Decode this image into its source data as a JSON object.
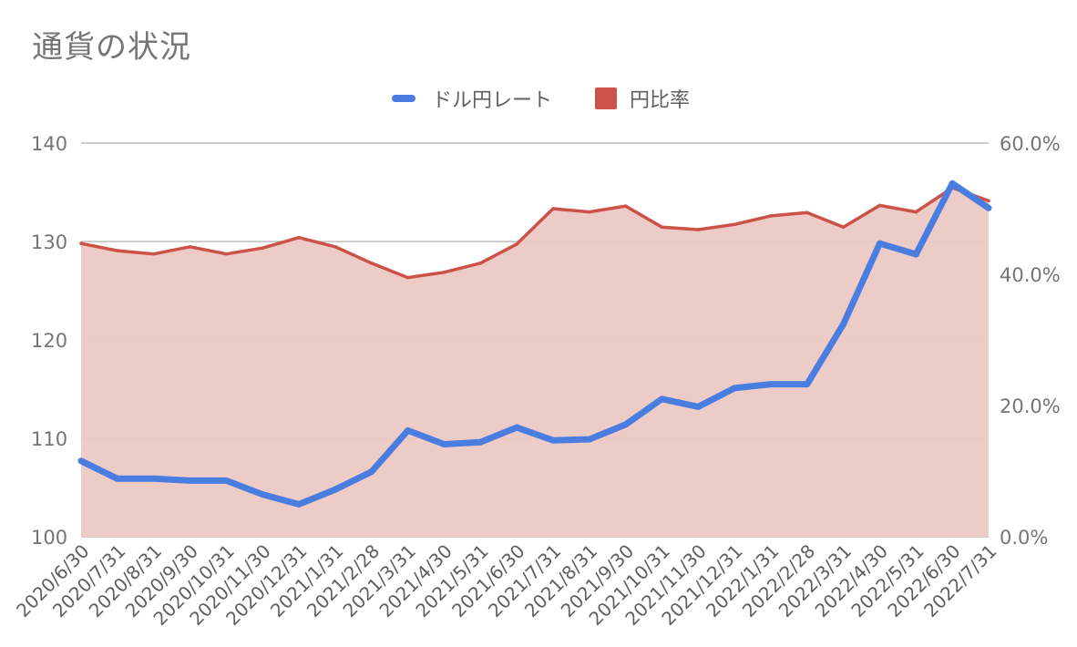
{
  "chart_data": {
    "type": "line",
    "title": "通貨の状況",
    "legend_position": "top-center",
    "grid": true,
    "categories": [
      "2020/6/30",
      "2020/7/31",
      "2020/8/31",
      "2020/9/30",
      "2020/10/31",
      "2020/11/30",
      "2020/12/31",
      "2021/1/31",
      "2021/2/28",
      "2021/3/31",
      "2021/4/30",
      "2021/5/31",
      "2021/6/30",
      "2021/7/31",
      "2021/8/31",
      "2021/9/30",
      "2021/10/31",
      "2021/11/30",
      "2021/12/31",
      "2022/1/31",
      "2022/2/28",
      "2022/3/31",
      "2022/4/30",
      "2022/5/31",
      "2022/6/30",
      "2022/7/31"
    ],
    "y_left": {
      "min": 100,
      "max": 140,
      "ticks": [
        100,
        110,
        120,
        130,
        140
      ],
      "tick_labels": [
        "100",
        "110",
        "120",
        "130",
        "140"
      ]
    },
    "y_right": {
      "min": 0,
      "max": 0.6,
      "ticks": [
        0,
        0.2,
        0.4,
        0.6
      ],
      "tick_labels": [
        "0.0%",
        "20.0%",
        "40.0%",
        "60.0%"
      ]
    },
    "series": [
      {
        "name": "ドル円レート",
        "type": "line",
        "axis": "left",
        "color": "#4a7de0",
        "values": [
          107.7,
          105.9,
          105.9,
          105.7,
          105.7,
          104.3,
          103.3,
          104.8,
          106.6,
          110.8,
          109.4,
          109.6,
          111.1,
          109.8,
          109.9,
          111.4,
          114.0,
          113.2,
          115.1,
          115.5,
          115.5,
          121.6,
          129.8,
          128.7,
          135.9,
          133.4
        ]
      },
      {
        "name": "円比率",
        "type": "area",
        "axis": "right",
        "color": "#cc5248",
        "fill_color": "#ecc8c4",
        "values": [
          0.447,
          0.436,
          0.431,
          0.442,
          0.431,
          0.44,
          0.456,
          0.442,
          0.417,
          0.395,
          0.403,
          0.417,
          0.446,
          0.5,
          0.495,
          0.504,
          0.472,
          0.468,
          0.476,
          0.489,
          0.494,
          0.472,
          0.505,
          0.495,
          0.532,
          0.512
        ]
      }
    ]
  }
}
